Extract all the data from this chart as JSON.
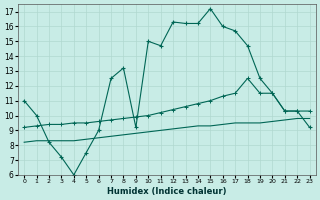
{
  "xlabel": "Humidex (Indice chaleur)",
  "xlim": [
    -0.5,
    23.5
  ],
  "ylim": [
    6,
    17.5
  ],
  "yticks": [
    6,
    7,
    8,
    9,
    10,
    11,
    12,
    13,
    14,
    15,
    16,
    17
  ],
  "xticks": [
    0,
    1,
    2,
    3,
    4,
    5,
    6,
    7,
    8,
    9,
    10,
    11,
    12,
    13,
    14,
    15,
    16,
    17,
    18,
    19,
    20,
    21,
    22,
    23
  ],
  "background_color": "#c8ece6",
  "grid_color": "#b0d8d0",
  "line_color": "#006655",
  "line1_x": [
    0,
    1,
    2,
    3,
    4,
    5,
    6,
    7,
    8,
    9,
    10,
    11,
    12,
    13,
    14,
    15,
    16,
    17,
    18,
    19,
    20,
    21,
    22,
    23
  ],
  "line1_y": [
    11.0,
    10.0,
    8.2,
    7.2,
    6.0,
    7.5,
    9.0,
    12.5,
    13.2,
    9.2,
    15.0,
    14.7,
    16.3,
    16.2,
    16.2,
    17.2,
    16.0,
    15.7,
    14.7,
    12.5,
    11.5,
    10.3,
    10.3,
    9.2
  ],
  "line2_x": [
    0,
    1,
    2,
    3,
    4,
    5,
    6,
    7,
    8,
    9,
    10,
    11,
    12,
    13,
    14,
    15,
    16,
    17,
    18,
    19,
    20,
    21,
    22,
    23
  ],
  "line2_y": [
    9.2,
    9.3,
    9.4,
    9.4,
    9.5,
    9.5,
    9.6,
    9.7,
    9.8,
    9.9,
    10.0,
    10.2,
    10.4,
    10.6,
    10.8,
    11.0,
    11.3,
    11.5,
    12.5,
    11.5,
    11.5,
    10.3,
    10.3,
    10.3
  ],
  "line3_x": [
    0,
    1,
    2,
    3,
    4,
    5,
    6,
    7,
    8,
    9,
    10,
    11,
    12,
    13,
    14,
    15,
    16,
    17,
    18,
    19,
    20,
    21,
    22,
    23
  ],
  "line3_y": [
    8.2,
    8.3,
    8.3,
    8.3,
    8.3,
    8.4,
    8.5,
    8.6,
    8.7,
    8.8,
    8.9,
    9.0,
    9.1,
    9.2,
    9.3,
    9.3,
    9.4,
    9.5,
    9.5,
    9.5,
    9.6,
    9.7,
    9.8,
    9.8
  ]
}
